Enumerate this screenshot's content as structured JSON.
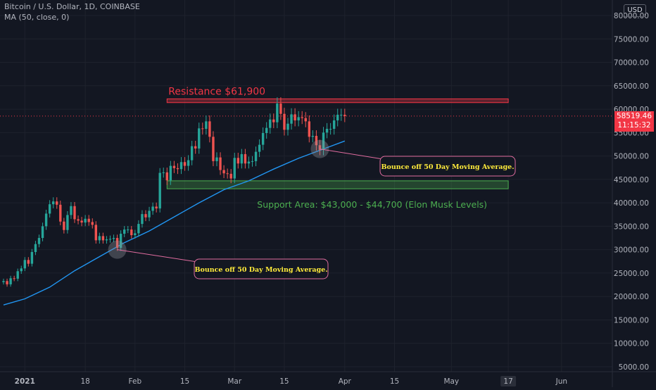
{
  "header": {
    "symbol_line": "Bitcoin / U.S. Dollar, 1D, COINBASE",
    "indicator_line": "MA (50, close, 0)",
    "currency_button": "USD"
  },
  "price_tag": {
    "price": "58519.46",
    "countdown": "11:15:32"
  },
  "colors": {
    "background": "#131722",
    "up": "#26a69a",
    "down": "#ef5350",
    "ma_line": "#2196f3",
    "resistance": "#f23645",
    "support": "#4caf50",
    "callout_border": "#e06c9f",
    "callout_text": "#ffeb3b"
  },
  "chart_data": {
    "type": "candlestick",
    "y_axis": {
      "range": [
        5000,
        80000
      ],
      "ticks": [
        5000,
        10000,
        15000,
        20000,
        25000,
        30000,
        35000,
        40000,
        45000,
        50000,
        55000,
        60000,
        65000,
        70000,
        75000,
        80000
      ],
      "tick_labels": [
        "5000.00",
        "10000.00",
        "15000.00",
        "20000.00",
        "25000.00",
        "30000.00",
        "35000.00",
        "40000.00",
        "45000.00",
        "50000.00",
        "55000.00",
        "60000.00",
        "65000.00",
        "70000.00",
        "75000.00",
        "80000.00"
      ]
    },
    "x_axis": {
      "range": [
        "2020-12-26",
        "2021-06-07"
      ],
      "ticks": [
        {
          "date": "2021-01-01",
          "label": "2021",
          "bold": true
        },
        {
          "date": "2021-01-18",
          "label": "18"
        },
        {
          "date": "2021-02-01",
          "label": "Feb"
        },
        {
          "date": "2021-02-15",
          "label": "15"
        },
        {
          "date": "2021-03-01",
          "label": "Mar"
        },
        {
          "date": "2021-03-15",
          "label": "15"
        },
        {
          "date": "2021-04-01",
          "label": "Apr"
        },
        {
          "date": "2021-04-15",
          "label": "15"
        },
        {
          "date": "2021-05-01",
          "label": "May"
        },
        {
          "date": "2021-05-17",
          "label": "17",
          "boxed": true
        },
        {
          "date": "2021-06-01",
          "label": "Jun"
        }
      ]
    },
    "closes": [
      [
        "2020-12-26",
        23300
      ],
      [
        "2020-12-27",
        22600
      ],
      [
        "2020-12-28",
        23900
      ],
      [
        "2020-12-29",
        23800
      ],
      [
        "2020-12-30",
        25400
      ],
      [
        "2020-12-31",
        26000
      ],
      [
        "2021-01-01",
        27800
      ],
      [
        "2021-01-02",
        27000
      ],
      [
        "2021-01-03",
        29500
      ],
      [
        "2021-01-04",
        31200
      ],
      [
        "2021-01-05",
        32500
      ],
      [
        "2021-01-06",
        35000
      ],
      [
        "2021-01-07",
        37700
      ],
      [
        "2021-01-08",
        39700
      ],
      [
        "2021-01-09",
        40300
      ],
      [
        "2021-01-10",
        39600
      ],
      [
        "2021-01-11",
        36000
      ],
      [
        "2021-01-12",
        34200
      ],
      [
        "2021-01-13",
        37400
      ],
      [
        "2021-01-14",
        39300
      ],
      [
        "2021-01-15",
        36500
      ],
      [
        "2021-01-16",
        36200
      ],
      [
        "2021-01-17",
        35800
      ],
      [
        "2021-01-18",
        36600
      ],
      [
        "2021-01-19",
        35900
      ],
      [
        "2021-01-20",
        35300
      ],
      [
        "2021-01-21",
        32000
      ],
      [
        "2021-01-22",
        32900
      ],
      [
        "2021-01-23",
        32000
      ],
      [
        "2021-01-24",
        32200
      ],
      [
        "2021-01-25",
        32300
      ],
      [
        "2021-01-26",
        32500
      ],
      [
        "2021-01-27",
        30400
      ],
      [
        "2021-01-28",
        33400
      ],
      [
        "2021-01-29",
        34300
      ],
      [
        "2021-01-30",
        34300
      ],
      [
        "2021-01-31",
        33100
      ],
      [
        "2021-02-01",
        33500
      ],
      [
        "2021-02-02",
        35500
      ],
      [
        "2021-02-03",
        37600
      ],
      [
        "2021-02-04",
        36900
      ],
      [
        "2021-02-05",
        38300
      ],
      [
        "2021-02-06",
        39200
      ],
      [
        "2021-02-07",
        38800
      ],
      [
        "2021-02-08",
        46400
      ],
      [
        "2021-02-09",
        46500
      ],
      [
        "2021-02-10",
        44800
      ],
      [
        "2021-02-11",
        47900
      ],
      [
        "2021-02-12",
        47400
      ],
      [
        "2021-02-13",
        47200
      ],
      [
        "2021-02-14",
        48700
      ],
      [
        "2021-02-15",
        47900
      ],
      [
        "2021-02-16",
        49100
      ],
      [
        "2021-02-17",
        52100
      ],
      [
        "2021-02-18",
        51600
      ],
      [
        "2021-02-19",
        55900
      ],
      [
        "2021-02-20",
        55800
      ],
      [
        "2021-02-21",
        57400
      ],
      [
        "2021-02-22",
        54100
      ],
      [
        "2021-02-23",
        48900
      ],
      [
        "2021-02-24",
        49700
      ],
      [
        "2021-02-25",
        47000
      ],
      [
        "2021-02-26",
        46300
      ],
      [
        "2021-02-27",
        46200
      ],
      [
        "2021-02-28",
        45200
      ],
      [
        "2021-03-01",
        49600
      ],
      [
        "2021-03-02",
        48400
      ],
      [
        "2021-03-03",
        50400
      ],
      [
        "2021-03-04",
        48400
      ],
      [
        "2021-03-05",
        48800
      ],
      [
        "2021-03-06",
        48900
      ],
      [
        "2021-03-07",
        50900
      ],
      [
        "2021-03-08",
        52400
      ],
      [
        "2021-03-09",
        54900
      ],
      [
        "2021-03-10",
        56000
      ],
      [
        "2021-03-11",
        57800
      ],
      [
        "2021-03-12",
        57200
      ],
      [
        "2021-03-13",
        61200
      ],
      [
        "2021-03-14",
        59000
      ],
      [
        "2021-03-15",
        55600
      ],
      [
        "2021-03-16",
        56900
      ],
      [
        "2021-03-17",
        58900
      ],
      [
        "2021-03-18",
        57600
      ],
      [
        "2021-03-19",
        58300
      ],
      [
        "2021-03-20",
        58100
      ],
      [
        "2021-03-21",
        57400
      ],
      [
        "2021-03-22",
        54100
      ],
      [
        "2021-03-23",
        54300
      ],
      [
        "2021-03-24",
        52300
      ],
      [
        "2021-03-25",
        51300
      ],
      [
        "2021-03-26",
        55000
      ],
      [
        "2021-03-27",
        55800
      ],
      [
        "2021-03-28",
        55800
      ],
      [
        "2021-03-29",
        57600
      ],
      [
        "2021-03-30",
        58800
      ],
      [
        "2021-03-31",
        58800
      ],
      [
        "2021-04-01",
        58519
      ]
    ],
    "moving_average": {
      "name": "MA (50, close, 0)",
      "points": [
        [
          "2020-12-26",
          18200
        ],
        [
          "2021-01-01",
          19500
        ],
        [
          "2021-01-08",
          22000
        ],
        [
          "2021-01-15",
          25500
        ],
        [
          "2021-01-22",
          28500
        ],
        [
          "2021-01-29",
          31500
        ],
        [
          "2021-02-05",
          34000
        ],
        [
          "2021-02-12",
          37000
        ],
        [
          "2021-02-19",
          40000
        ],
        [
          "2021-02-26",
          42800
        ],
        [
          "2021-03-05",
          44700
        ],
        [
          "2021-03-12",
          47200
        ],
        [
          "2021-03-19",
          49500
        ],
        [
          "2021-03-26",
          51500
        ],
        [
          "2021-04-01",
          53200
        ]
      ]
    },
    "annotations": [
      {
        "kind": "zone",
        "label": "Resistance $61,900",
        "from": "2021-02-10",
        "to": "2021-05-17",
        "low": 61400,
        "high": 62200
      },
      {
        "kind": "zone",
        "label": "Support Area: $43,000 - $44,700 (Elon Musk Levels)",
        "from": "2021-02-10",
        "to": "2021-05-17",
        "low": 43000,
        "high": 44700
      },
      {
        "kind": "callout",
        "label": "Bounce off 50 Day Moving Average.",
        "anchor_date": "2021-01-27",
        "anchor_price": 30000
      },
      {
        "kind": "callout",
        "label": "Bounce off 50 Day Moving Average.",
        "anchor_date": "2021-03-25",
        "anchor_price": 51500
      }
    ],
    "last_price": 58519.46
  }
}
